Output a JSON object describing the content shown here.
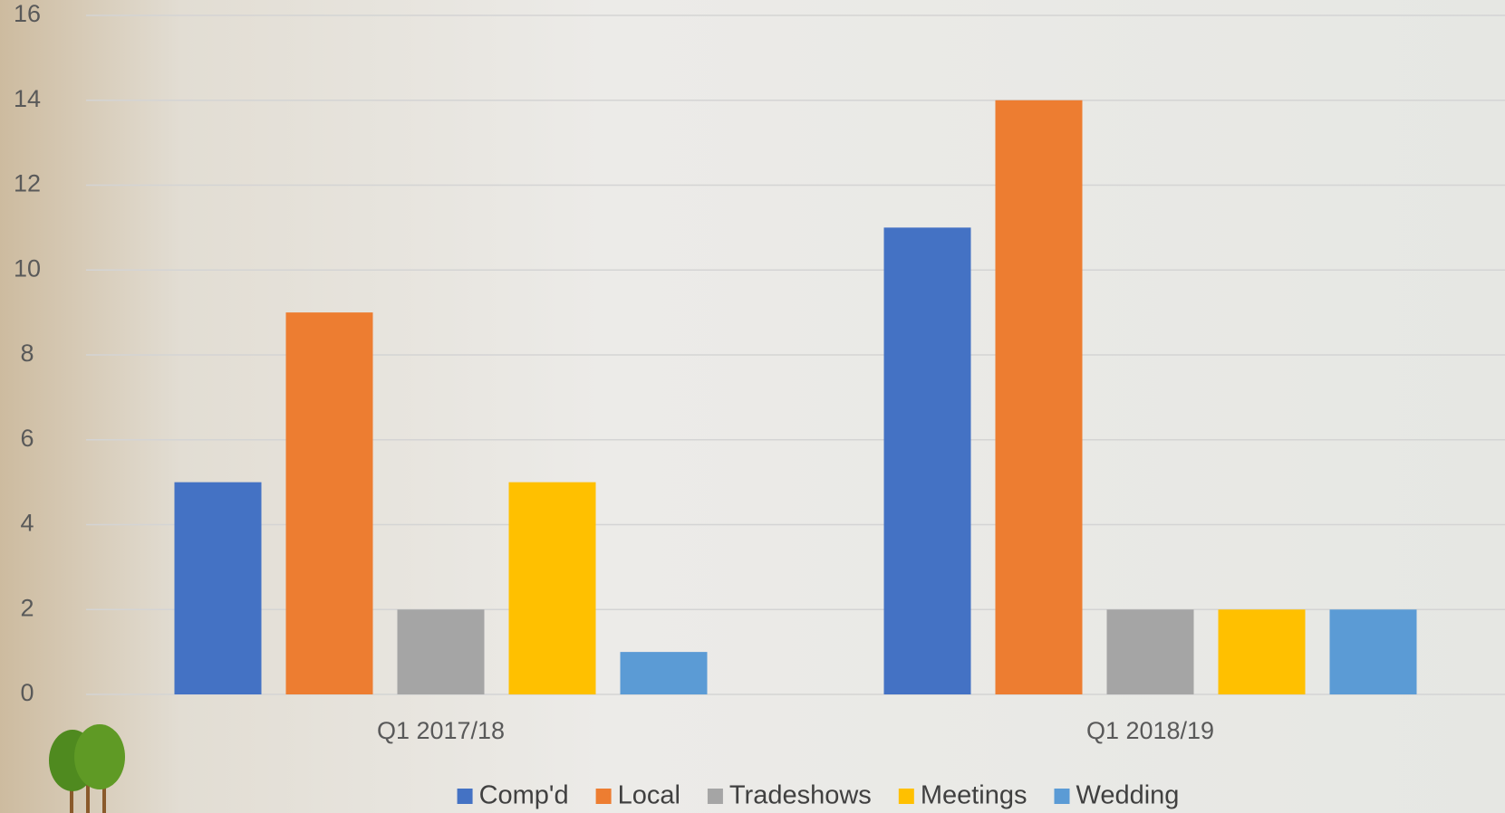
{
  "chart_data": {
    "type": "bar",
    "categories": [
      "Q1 2017/18",
      "Q1 2018/19"
    ],
    "series": [
      {
        "name": "Comp'd",
        "color": "#4472c4",
        "values": [
          5,
          11
        ]
      },
      {
        "name": "Local",
        "color": "#ed7d31",
        "values": [
          9,
          14
        ]
      },
      {
        "name": "Tradeshows",
        "color": "#a5a5a5",
        "values": [
          2,
          2
        ]
      },
      {
        "name": "Meetings",
        "color": "#ffc000",
        "values": [
          5,
          2
        ]
      },
      {
        "name": "Wedding",
        "color": "#5b9bd5",
        "values": [
          1,
          2
        ]
      }
    ],
    "ylim": [
      0,
      16
    ],
    "yticks": [
      0,
      2,
      4,
      6,
      8,
      10,
      12,
      14,
      16
    ],
    "grid": true,
    "legend": "bottom"
  }
}
